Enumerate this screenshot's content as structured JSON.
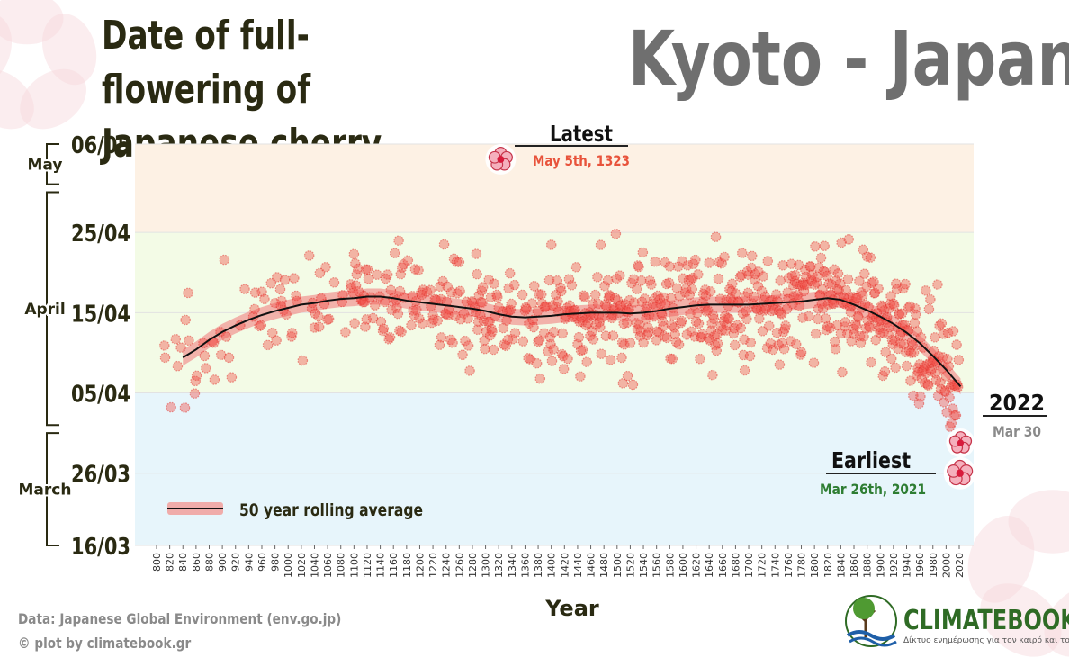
{
  "header": {
    "title_line1": "Date of full-flowering of",
    "title_line2": "Japanese cherry",
    "location": "Kyoto - Japan"
  },
  "footer": {
    "data_source": "Data:  Japanese Global Environment (env.go.jp)",
    "credit": "© plot by climatebook.gr",
    "brand_name": "CLIMATEBOOK",
    "brand_tagline": "Δίκτυο ενημέρωσης για τον καιρό και το κλίμα"
  },
  "colors": {
    "dot": "#f0504a",
    "band": "#f29a96",
    "trend": "#111111",
    "zone_may": "#fdf1e4",
    "zone_april": "#f3fbe6",
    "zone_march": "#e7f5fb",
    "latest_text": "#e8533b",
    "earliest_text": "#2e7d32"
  },
  "chart_data": {
    "type": "scatter",
    "title": "Date of full-flowering of Japanese cherry",
    "xlabel": "Year",
    "ylabel": "",
    "xlim": [
      795,
      2025
    ],
    "ylim": [
      "16/03",
      "06/05"
    ],
    "y_unit": "day of year (76 = 16 Mar, 126 = 6 May)",
    "y_range_doy": [
      76,
      126
    ],
    "x_ticks": [
      800,
      820,
      840,
      860,
      880,
      900,
      920,
      940,
      960,
      980,
      1000,
      1020,
      1040,
      1060,
      1080,
      1100,
      1120,
      1140,
      1160,
      1180,
      1200,
      1220,
      1240,
      1260,
      1280,
      1300,
      1320,
      1340,
      1360,
      1380,
      1400,
      1420,
      1440,
      1460,
      1480,
      1500,
      1520,
      1540,
      1560,
      1580,
      1600,
      1620,
      1640,
      1660,
      1680,
      1700,
      1720,
      1740,
      1760,
      1780,
      1800,
      1820,
      1840,
      1860,
      1880,
      1900,
      1920,
      1940,
      1960,
      1980,
      2000,
      2020
    ],
    "y_ticks": [
      {
        "label": "06/05",
        "doy": 126
      },
      {
        "label": "25/04",
        "doy": 115
      },
      {
        "label": "15/04",
        "doy": 105
      },
      {
        "label": "05/04",
        "doy": 95
      },
      {
        "label": "26/03",
        "doy": 85
      },
      {
        "label": "16/03",
        "doy": 76
      }
    ],
    "month_brackets": [
      {
        "label": "May",
        "doy_from": 121,
        "doy_to": 126
      },
      {
        "label": "April",
        "doy_from": 91,
        "doy_to": 120
      },
      {
        "label": "March",
        "doy_from": 76,
        "doy_to": 90
      }
    ],
    "series": [
      {
        "name": "Full-flowering date (annual)",
        "generated": true,
        "year_from": 812,
        "year_to": 2022,
        "approx_count": 830
      },
      {
        "name": "50 year rolling average",
        "x": [
          840,
          860,
          880,
          900,
          920,
          940,
          960,
          980,
          1000,
          1020,
          1040,
          1060,
          1080,
          1100,
          1120,
          1140,
          1160,
          1180,
          1200,
          1220,
          1240,
          1260,
          1280,
          1300,
          1320,
          1340,
          1360,
          1380,
          1400,
          1420,
          1440,
          1460,
          1480,
          1500,
          1520,
          1540,
          1560,
          1580,
          1600,
          1620,
          1640,
          1660,
          1680,
          1700,
          1720,
          1740,
          1760,
          1780,
          1800,
          1820,
          1840,
          1860,
          1880,
          1900,
          1920,
          1940,
          1960,
          1980,
          2000,
          2022
        ],
        "y": [
          99.4,
          100.4,
          101.6,
          102.6,
          103.4,
          104.1,
          104.7,
          105.2,
          105.6,
          106.0,
          106.2,
          106.5,
          106.7,
          106.8,
          107.0,
          107.0,
          106.8,
          106.5,
          106.3,
          106.1,
          105.9,
          105.7,
          105.5,
          105.2,
          104.8,
          104.5,
          104.4,
          104.5,
          104.6,
          104.8,
          104.9,
          105.0,
          105.0,
          105.0,
          104.9,
          105.0,
          105.2,
          105.5,
          105.7,
          105.9,
          106.0,
          106.0,
          106.0,
          106.0,
          106.1,
          106.2,
          106.3,
          106.4,
          106.6,
          106.8,
          106.6,
          106.0,
          105.3,
          104.5,
          103.6,
          102.5,
          101.2,
          99.6,
          97.9,
          95.8
        ],
        "band_halfwidth_days": 1.0
      }
    ],
    "annotations": [
      {
        "label": "Latest",
        "date": "May 5th, 1323",
        "year": 1323,
        "doy": 125
      },
      {
        "label": "Earliest",
        "date": "Mar 26th, 2021",
        "year": 2021,
        "doy": 85
      },
      {
        "label": "2022",
        "date": "Mar 30",
        "year": 2022,
        "doy": 89
      }
    ],
    "legend": {
      "label": "50 year rolling average",
      "position": "bottom-left"
    }
  }
}
